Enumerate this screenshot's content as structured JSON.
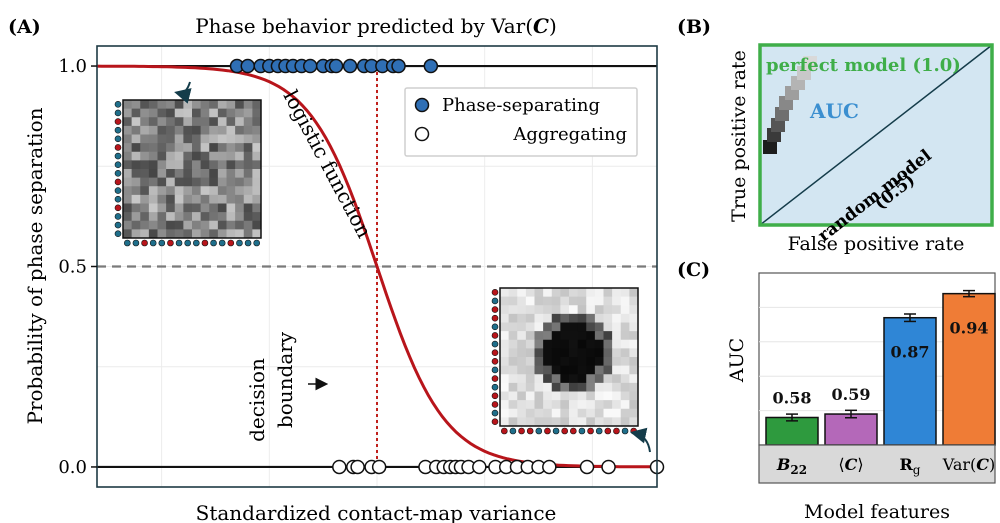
{
  "panel_a": {
    "label": "(A)",
    "title_prefix": "Phase behavior predicted by ",
    "title_var": "Var(",
    "title_C": "C",
    "title_close": ")",
    "xlabel": "Standardized contact-map variance",
    "ylabel": "Probability of phase separation",
    "curve_label": "logistic function",
    "boundary_label_1": "decision",
    "boundary_label_2": "boundary",
    "legend": [
      {
        "name": "Phase-separating",
        "color": "#2f6fb5"
      },
      {
        "name": "Aggregating",
        "color": "#ffffff"
      }
    ]
  },
  "panel_b": {
    "label": "(B)",
    "xlabel": "False positive rate",
    "ylabel": "True positive rate",
    "perfect_label": "perfect model (1.0)",
    "auc_label": "AUC",
    "random_label_1": "random model",
    "random_label_2": "(0.5)"
  },
  "panel_c": {
    "label": "(C)",
    "xlabel": "Model features",
    "ylabel": "AUC"
  },
  "chart_data": [
    {
      "type": "scatter",
      "title": "Phase behavior predicted by Var(C)",
      "xlabel": "Standardized contact-map variance",
      "ylabel": "Probability of phase separation",
      "yticks": [
        "0.0",
        "0.5",
        "1.0"
      ],
      "ylim": [
        -0.05,
        1.05
      ],
      "xlim": [
        -2.6,
        2.6
      ],
      "decision_boundary_x": 0.0,
      "threshold_y": 0.5,
      "logistic": {
        "midpoint": 0.0,
        "steepness": 3.2
      },
      "series": [
        {
          "name": "Phase-separating",
          "y": 1.0,
          "color": "#2f6fb5",
          "x": [
            -1.3,
            -1.2,
            -1.08,
            -1.0,
            -0.92,
            -0.85,
            -0.78,
            -0.7,
            -0.62,
            -0.5,
            -0.42,
            -0.38,
            -0.25,
            -0.12,
            -0.05,
            0.05,
            0.15,
            0.2,
            0.5
          ]
        },
        {
          "name": "Aggregating",
          "y": 0.0,
          "color": "#ffffff",
          "x": [
            -0.35,
            -0.22,
            -0.18,
            -0.05,
            0.02,
            0.45,
            0.55,
            0.62,
            0.68,
            0.73,
            0.78,
            0.85,
            0.95,
            1.1,
            1.2,
            1.3,
            1.4,
            1.5,
            1.6,
            1.95,
            2.15,
            2.6
          ]
        }
      ],
      "grid": true,
      "legend_position": "top-right"
    },
    {
      "type": "line",
      "xlabel": "False positive rate",
      "ylabel": "True positive rate",
      "series": [
        {
          "name": "perfect model (1.0)",
          "auc": 1.0,
          "color": "#3fae49"
        },
        {
          "name": "random model (0.5)",
          "auc": 0.5,
          "color": "#111111"
        }
      ]
    },
    {
      "type": "bar",
      "xlabel": "Model features",
      "ylabel": "AUC",
      "ylim": [
        0.5,
        1.0
      ],
      "categories": [
        "B22",
        "⟨C⟩",
        "Rg",
        "Var(C)"
      ],
      "values": [
        0.58,
        0.59,
        0.87,
        0.94
      ],
      "value_labels": [
        "0.58",
        "0.59",
        "0.87",
        "0.94"
      ],
      "colors": [
        "#2e9a3e",
        "#b468b9",
        "#2f86d6",
        "#ef7c36"
      ],
      "errors": [
        0.004,
        0.005,
        0.005,
        0.003
      ],
      "grid": true
    }
  ]
}
